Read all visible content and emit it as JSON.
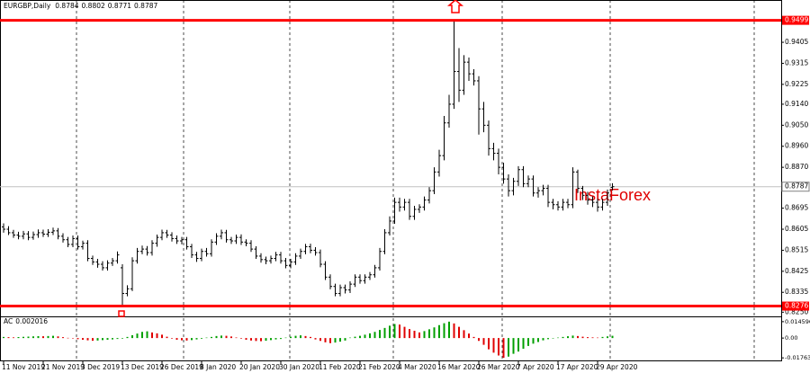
{
  "chart_data": {
    "type": "ohlc",
    "title": "EURGBP,Daily",
    "watermark": "InstaForex",
    "color": "#000000",
    "level_color": "#ff0000",
    "categories": [
      "11 Nov 2019",
      null,
      null,
      null,
      null,
      null,
      null,
      null,
      "21 Nov 2019",
      null,
      null,
      null,
      null,
      null,
      null,
      null,
      "3 Dec 2019",
      null,
      null,
      null,
      null,
      null,
      null,
      null,
      "13 Dec 2019",
      null,
      null,
      null,
      null,
      null,
      null,
      null,
      "26 Dec 2019",
      null,
      null,
      null,
      null,
      null,
      null,
      null,
      "8 Jan 2020",
      null,
      null,
      null,
      null,
      null,
      null,
      null,
      "20 Jan 2020",
      null,
      null,
      null,
      null,
      null,
      null,
      null,
      "30 Jan 2020",
      null,
      null,
      null,
      null,
      null,
      null,
      null,
      "11 Feb 2020",
      null,
      null,
      null,
      null,
      null,
      null,
      null,
      "21 Feb 2020",
      null,
      null,
      null,
      null,
      null,
      null,
      null,
      "4 Mar 2020",
      null,
      null,
      null,
      null,
      null,
      null,
      null,
      "16 Mar 2020",
      null,
      null,
      null,
      null,
      null,
      null,
      null,
      "26 Mar 2020",
      null,
      null,
      null,
      null,
      null,
      null,
      null,
      "7 Apr 2020",
      null,
      null,
      null,
      null,
      null,
      null,
      null,
      "17 Apr 2020",
      null,
      null,
      null,
      null,
      null,
      null,
      null,
      "29 Apr 2020",
      null,
      null,
      null
    ],
    "open": [
      0.8615,
      0.8605,
      0.859,
      0.858,
      0.8575,
      0.8585,
      0.857,
      0.8582,
      0.859,
      0.8584,
      0.8592,
      0.8598,
      0.8575,
      0.856,
      0.854,
      0.8565,
      0.853,
      0.8545,
      0.848,
      0.8465,
      0.8455,
      0.844,
      0.846,
      0.847,
      0.844,
      0.833,
      0.835,
      0.847,
      0.851,
      0.852,
      0.8505,
      0.8545,
      0.857,
      0.859,
      0.858,
      0.8565,
      0.8555,
      0.856,
      0.853,
      0.8495,
      0.848,
      0.851,
      0.85,
      0.855,
      0.8575,
      0.859,
      0.856,
      0.8555,
      0.857,
      0.855,
      0.8545,
      0.852,
      0.849,
      0.8475,
      0.847,
      0.848,
      0.8495,
      0.847,
      0.845,
      0.8465,
      0.849,
      0.851,
      0.853,
      0.8515,
      0.8505,
      0.8455,
      0.84,
      0.836,
      0.833,
      0.8355,
      0.8345,
      0.837,
      0.84,
      0.8385,
      0.84,
      0.841,
      0.844,
      0.851,
      0.859,
      0.864,
      0.872,
      0.87,
      0.872,
      0.866,
      0.869,
      0.87,
      0.873,
      0.877,
      0.885,
      0.892,
      0.906,
      0.914,
      0.928,
      0.92,
      0.932,
      0.927,
      0.924,
      0.912,
      0.905,
      0.895,
      0.893,
      0.887,
      0.882,
      0.877,
      0.881,
      0.886,
      0.88,
      0.882,
      0.876,
      0.877,
      0.878,
      0.872,
      0.871,
      0.87,
      0.872,
      0.871,
      0.885,
      0.878,
      0.875,
      0.873,
      0.872,
      0.87,
      0.872,
      0.8784
    ],
    "high": [
      0.863,
      0.8618,
      0.8602,
      0.8594,
      0.8598,
      0.8597,
      0.8595,
      0.8604,
      0.8603,
      0.8605,
      0.8612,
      0.861,
      0.8588,
      0.8572,
      0.8578,
      0.8578,
      0.8556,
      0.8558,
      0.8492,
      0.8478,
      0.8468,
      0.8472,
      0.8482,
      0.851,
      0.8455,
      0.8365,
      0.8485,
      0.8525,
      0.8535,
      0.8533,
      0.8558,
      0.8582,
      0.8603,
      0.8602,
      0.8592,
      0.8578,
      0.8572,
      0.8572,
      0.8542,
      0.8508,
      0.8522,
      0.8525,
      0.8562,
      0.8588,
      0.8603,
      0.8602,
      0.8572,
      0.8582,
      0.8583,
      0.8562,
      0.8558,
      0.8532,
      0.8502,
      0.8488,
      0.8492,
      0.8508,
      0.8508,
      0.8482,
      0.8478,
      0.8502,
      0.8522,
      0.8542,
      0.8543,
      0.8528,
      0.8518,
      0.8468,
      0.8412,
      0.8372,
      0.8368,
      0.8368,
      0.8382,
      0.8412,
      0.8412,
      0.8412,
      0.8422,
      0.8452,
      0.8525,
      0.8605,
      0.866,
      0.874,
      0.874,
      0.8735,
      0.8735,
      0.8705,
      0.8712,
      0.8745,
      0.8785,
      0.887,
      0.8945,
      0.909,
      0.918,
      0.9499,
      0.938,
      0.935,
      0.934,
      0.929,
      0.926,
      0.915,
      0.907,
      0.8975,
      0.895,
      0.889,
      0.884,
      0.8825,
      0.8875,
      0.8875,
      0.8835,
      0.8835,
      0.8785,
      0.8795,
      0.8795,
      0.8735,
      0.8725,
      0.8735,
      0.8735,
      0.887,
      0.886,
      0.879,
      0.8765,
      0.8745,
      0.8735,
      0.8735,
      0.8775,
      0.8802
    ],
    "low": [
      0.859,
      0.858,
      0.8568,
      0.8562,
      0.8562,
      0.8558,
      0.856,
      0.8568,
      0.8572,
      0.8572,
      0.858,
      0.8562,
      0.8548,
      0.8528,
      0.8528,
      0.8518,
      0.8518,
      0.8468,
      0.8452,
      0.844,
      0.8428,
      0.8428,
      0.8448,
      0.8458,
      0.8276,
      0.8318,
      0.834,
      0.8458,
      0.8498,
      0.8492,
      0.8492,
      0.853,
      0.8558,
      0.8568,
      0.8552,
      0.8542,
      0.854,
      0.8518,
      0.8482,
      0.8465,
      0.8468,
      0.8488,
      0.8488,
      0.8538,
      0.8562,
      0.8548,
      0.8542,
      0.8542,
      0.8538,
      0.8532,
      0.8508,
      0.8478,
      0.8462,
      0.8455,
      0.8458,
      0.8468,
      0.8458,
      0.8438,
      0.8438,
      0.8452,
      0.8478,
      0.8498,
      0.8502,
      0.8492,
      0.8442,
      0.8388,
      0.8348,
      0.8318,
      0.8318,
      0.833,
      0.8332,
      0.8358,
      0.8372,
      0.8372,
      0.8388,
      0.8398,
      0.8428,
      0.8498,
      0.8578,
      0.8628,
      0.868,
      0.8685,
      0.8645,
      0.8645,
      0.8675,
      0.8685,
      0.8715,
      0.8755,
      0.883,
      0.89,
      0.904,
      0.912,
      0.915,
      0.918,
      0.924,
      0.922,
      0.901,
      0.902,
      0.892,
      0.89,
      0.884,
      0.88,
      0.8745,
      0.875,
      0.879,
      0.8785,
      0.8785,
      0.8745,
      0.874,
      0.875,
      0.87,
      0.869,
      0.8685,
      0.8685,
      0.8695,
      0.8695,
      0.876,
      0.873,
      0.871,
      0.87,
      0.868,
      0.8685,
      0.8705,
      0.8771
    ],
    "close": [
      0.8605,
      0.859,
      0.858,
      0.8575,
      0.8585,
      0.857,
      0.8582,
      0.859,
      0.8584,
      0.8592,
      0.8598,
      0.8575,
      0.856,
      0.854,
      0.8565,
      0.853,
      0.8545,
      0.848,
      0.8465,
      0.8455,
      0.844,
      0.846,
      0.847,
      0.8495,
      0.833,
      0.835,
      0.847,
      0.851,
      0.852,
      0.8505,
      0.8545,
      0.857,
      0.859,
      0.858,
      0.8565,
      0.8555,
      0.856,
      0.853,
      0.8495,
      0.848,
      0.851,
      0.85,
      0.855,
      0.8575,
      0.859,
      0.856,
      0.8555,
      0.857,
      0.855,
      0.8545,
      0.852,
      0.849,
      0.8475,
      0.847,
      0.848,
      0.8495,
      0.847,
      0.845,
      0.8465,
      0.849,
      0.851,
      0.853,
      0.8515,
      0.8505,
      0.8455,
      0.84,
      0.836,
      0.833,
      0.8355,
      0.8345,
      0.837,
      0.84,
      0.8385,
      0.84,
      0.841,
      0.844,
      0.851,
      0.859,
      0.864,
      0.872,
      0.87,
      0.872,
      0.866,
      0.869,
      0.87,
      0.873,
      0.877,
      0.885,
      0.892,
      0.906,
      0.914,
      0.928,
      0.92,
      0.932,
      0.927,
      0.924,
      0.912,
      0.905,
      0.895,
      0.893,
      0.887,
      0.882,
      0.877,
      0.881,
      0.886,
      0.88,
      0.882,
      0.876,
      0.877,
      0.878,
      0.872,
      0.871,
      0.87,
      0.872,
      0.871,
      0.885,
      0.878,
      0.875,
      0.873,
      0.872,
      0.87,
      0.872,
      0.876,
      0.8787
    ],
    "ylim": [
      0.8232,
      0.9586
    ],
    "yticks": [
      0.9405,
      0.9315,
      0.9225,
      {
        "value": 0.914,
        "label": "0.9140"
      },
      {
        "value": 0.905,
        "label": "0.9050"
      },
      {
        "value": 0.896,
        "label": "0.8960"
      },
      {
        "value": 0.887,
        "label": "0.8870"
      },
      0.8695,
      0.8605,
      0.8515,
      0.8425,
      0.8335,
      {
        "value": 0.825,
        "label": "0.8250"
      }
    ],
    "levels": [
      0.9499,
      0.8276
    ],
    "current_price": 0.8787,
    "indicator": {
      "name": "AC",
      "up_color": "#00a000",
      "down_color": "#e00000",
      "values": [
        0.001,
        0.0008,
        0.0006,
        0.0009,
        0.0011,
        0.0013,
        0.0015,
        0.0017,
        0.0016,
        0.0018,
        0.002,
        0.0015,
        0.0008,
        0.0002,
        -0.0003,
        -0.001,
        -0.0015,
        -0.002,
        -0.0024,
        -0.0022,
        -0.0018,
        -0.0015,
        -0.0012,
        -0.0008,
        -0.0005,
        0.001,
        0.0025,
        0.004,
        0.0055,
        0.006,
        0.005,
        0.0042,
        0.003,
        0.0012,
        -0.0005,
        -0.0015,
        -0.002,
        -0.0022,
        -0.0018,
        -0.0012,
        -0.0006,
        0.0004,
        0.001,
        0.0018,
        0.0022,
        0.002,
        0.0014,
        0.0005,
        -0.0005,
        -0.0015,
        -0.0022,
        -0.0026,
        -0.0028,
        -0.0024,
        -0.0018,
        -0.0012,
        -0.0008,
        0.0004,
        0.0012,
        0.002,
        0.0024,
        0.0018,
        0.001,
        -0.0012,
        -0.0025,
        -0.0038,
        -0.0045,
        -0.004,
        -0.0032,
        -0.0022,
        0.0004,
        0.0012,
        0.002,
        0.003,
        0.0042,
        0.0055,
        0.0072,
        0.009,
        0.011,
        0.0125,
        0.012,
        0.01,
        0.008,
        0.0065,
        0.005,
        0.0062,
        0.0078,
        0.0095,
        0.0115,
        0.0132,
        0.0146,
        0.013,
        0.01,
        0.007,
        0.004,
        0.001,
        -0.0025,
        -0.006,
        -0.01,
        -0.013,
        -0.0155,
        -0.0176,
        -0.0165,
        -0.014,
        -0.012,
        -0.0095,
        -0.007,
        -0.005,
        -0.0035,
        -0.002,
        -0.001,
        -0.0002,
        0.0004,
        0.001,
        0.0016,
        0.0022,
        0.0018,
        0.0012,
        0.0008,
        0.0006,
        0.0004,
        0.001,
        0.0015,
        0.002016
      ],
      "ylim": [
        -0.0199,
        0.0185
      ],
      "yticks": [
        0.014596,
        {
          "value": 0,
          "label": "0.00"
        },
        -0.01763
      ]
    }
  }
}
